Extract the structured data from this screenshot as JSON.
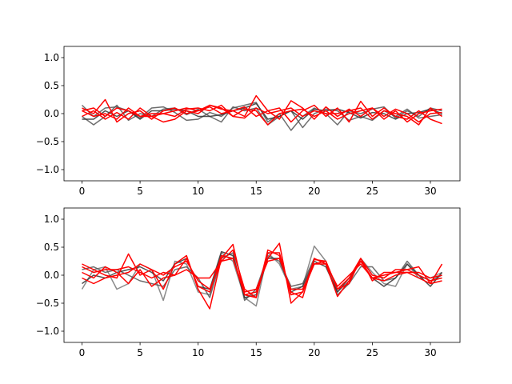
{
  "chart_data": [
    {
      "type": "line",
      "title": "",
      "xlabel": "",
      "ylabel": "",
      "xlim": [
        -1.55,
        32.55
      ],
      "ylim": [
        -1.2,
        1.2
      ],
      "xticks": [
        0,
        5,
        10,
        15,
        20,
        25,
        30
      ],
      "yticks": [
        -1.0,
        -0.5,
        0.0,
        0.5,
        1.0
      ],
      "xtick_labels": [
        "0",
        "5",
        "10",
        "15",
        "20",
        "25",
        "30"
      ],
      "ytick_labels": [
        "−1.0",
        "−0.5",
        "0.0",
        "0.5",
        "1.0"
      ],
      "grid": false,
      "x": [
        0,
        1,
        2,
        3,
        4,
        5,
        6,
        7,
        8,
        9,
        10,
        11,
        12,
        13,
        14,
        15,
        16,
        17,
        18,
        19,
        20,
        21,
        22,
        23,
        24,
        25,
        26,
        27,
        28,
        29,
        30,
        31
      ],
      "series": [
        {
          "color": "#555555",
          "values": [
            0.15,
            -0.05,
            0.1,
            0.12,
            0.05,
            -0.08,
            0.1,
            0.12,
            0.02,
            -0.12,
            -0.1,
            0.02,
            -0.05,
            0.1,
            0.15,
            0.2,
            -0.15,
            0.0,
            -0.3,
            -0.05,
            0.1,
            0.0,
            -0.2,
            0.05,
            0.0,
            0.08,
            0.12,
            -0.08,
            0.05,
            -0.05,
            0.1,
            0.05
          ]
        },
        {
          "color": "#555555",
          "values": [
            -0.05,
            -0.2,
            -0.05,
            0.15,
            -0.12,
            0.0,
            -0.05,
            0.08,
            0.1,
            -0.02,
            0.08,
            -0.05,
            -0.15,
            0.12,
            0.05,
            0.1,
            -0.2,
            -0.05,
            0.05,
            -0.25,
            0.0,
            0.08,
            0.05,
            -0.12,
            -0.05,
            -0.12,
            0.05,
            -0.05,
            0.08,
            -0.08,
            -0.05,
            -0.02
          ]
        },
        {
          "color": "#333333",
          "values": [
            -0.1,
            -0.1,
            0.05,
            -0.05,
            0.05,
            -0.1,
            0.05,
            0.05,
            0.08,
            0.05,
            -0.05,
            -0.05,
            -0.02,
            0.05,
            0.1,
            0.18,
            -0.1,
            -0.05,
            0.05,
            -0.1,
            0.08,
            0.05,
            0.08,
            0.02,
            -0.08,
            0.02,
            0.0,
            -0.1,
            0.0,
            0.02,
            0.08,
            0.0
          ]
        },
        {
          "color": "#ff0000",
          "values": [
            0.1,
            0.0,
            0.25,
            -0.15,
            0.0,
            0.05,
            -0.1,
            0.05,
            0.1,
            0.0,
            0.05,
            0.12,
            0.0,
            0.05,
            -0.05,
            0.32,
            0.05,
            0.1,
            -0.15,
            0.05,
            0.15,
            -0.05,
            0.1,
            -0.15,
            0.22,
            -0.05,
            0.1,
            -0.05,
            -0.1,
            0.05,
            -0.1,
            -0.18
          ]
        },
        {
          "color": "#ff0000",
          "values": [
            -0.05,
            0.05,
            -0.1,
            0.02,
            -0.1,
            0.1,
            -0.05,
            -0.15,
            -0.1,
            0.05,
            0.0,
            0.15,
            0.08,
            0.05,
            0.12,
            -0.05,
            0.05,
            -0.1,
            0.23,
            0.1,
            -0.1,
            0.12,
            -0.05,
            0.08,
            -0.05,
            0.1,
            -0.1,
            0.05,
            -0.15,
            0.0,
            0.05,
            0.08
          ]
        },
        {
          "color": "#ff0000",
          "values": [
            0.05,
            0.1,
            -0.05,
            0.1,
            0.05,
            -0.05,
            0.0,
            0.0,
            0.05,
            0.1,
            0.05,
            0.15,
            0.1,
            -0.05,
            -0.08,
            0.1,
            0.0,
            0.05,
            0.1,
            -0.05,
            0.05,
            0.0,
            0.0,
            0.05,
            0.1,
            -0.1,
            0.05,
            0.0,
            -0.05,
            -0.2,
            0.1,
            -0.05
          ]
        },
        {
          "color": "#ff0000",
          "values": [
            0.05,
            -0.05,
            0.0,
            -0.1,
            0.1,
            -0.05,
            -0.05,
            0.0,
            -0.05,
            0.08,
            0.1,
            0.05,
            0.15,
            -0.05,
            0.08,
            0.05,
            -0.2,
            0.0,
            0.05,
            0.08,
            -0.05,
            0.05,
            -0.1,
            0.0,
            0.05,
            0.1,
            -0.05,
            0.08,
            0.0,
            -0.15,
            0.0,
            0.02
          ]
        }
      ]
    },
    {
      "type": "line",
      "title": "",
      "xlabel": "",
      "ylabel": "",
      "xlim": [
        -1.55,
        32.55
      ],
      "ylim": [
        -1.2,
        1.2
      ],
      "xticks": [
        0,
        5,
        10,
        15,
        20,
        25,
        30
      ],
      "yticks": [
        -1.0,
        -0.5,
        0.0,
        0.5,
        1.0
      ],
      "xtick_labels": [
        "0",
        "5",
        "10",
        "15",
        "20",
        "25",
        "30"
      ],
      "ytick_labels": [
        "−1.0",
        "−0.5",
        "0.0",
        "0.5",
        "1.0"
      ],
      "grid": false,
      "x": [
        0,
        1,
        2,
        3,
        4,
        5,
        6,
        7,
        8,
        9,
        10,
        11,
        12,
        13,
        14,
        15,
        16,
        17,
        18,
        19,
        20,
        21,
        22,
        23,
        24,
        25,
        26,
        27,
        28,
        29,
        30,
        31
      ],
      "series": [
        {
          "color": "#777777",
          "values": [
            -0.25,
            0.1,
            0.15,
            -0.25,
            -0.15,
            0.2,
            0.1,
            -0.45,
            0.25,
            0.2,
            -0.3,
            -0.35,
            0.4,
            0.25,
            -0.4,
            -0.55,
            0.4,
            0.2,
            -0.25,
            -0.2,
            0.52,
            0.25,
            -0.3,
            -0.1,
            0.3,
            0.05,
            -0.15,
            -0.2,
            0.2,
            -0.05,
            -0.05,
            0.05
          ]
        },
        {
          "color": "#555555",
          "values": [
            0.1,
            0.15,
            0.05,
            0.1,
            0.0,
            -0.1,
            -0.15,
            -0.2,
            0.1,
            0.15,
            -0.05,
            -0.4,
            0.3,
            0.4,
            -0.45,
            -0.25,
            0.35,
            0.25,
            -0.2,
            -0.15,
            0.3,
            0.2,
            -0.35,
            -0.15,
            0.15,
            0.15,
            -0.1,
            -0.05,
            0.25,
            0.0,
            -0.1,
            0.0
          ]
        },
        {
          "color": "#333333",
          "values": [
            -0.15,
            0.0,
            -0.05,
            0.05,
            0.1,
            0.15,
            0.05,
            -0.1,
            0.2,
            0.3,
            -0.2,
            -0.25,
            0.42,
            0.35,
            -0.4,
            -0.35,
            0.3,
            0.3,
            -0.3,
            -0.2,
            0.25,
            0.15,
            -0.3,
            -0.05,
            0.25,
            -0.05,
            -0.2,
            -0.05,
            0.2,
            0.0,
            -0.2,
            0.05
          ]
        },
        {
          "color": "#ff0000",
          "values": [
            0.2,
            0.1,
            0.0,
            -0.05,
            0.38,
            0.0,
            0.1,
            -0.25,
            0.2,
            0.35,
            -0.25,
            -0.6,
            0.3,
            0.55,
            -0.35,
            -0.3,
            0.3,
            0.57,
            -0.5,
            -0.3,
            0.2,
            0.25,
            -0.25,
            -0.15,
            0.3,
            -0.1,
            0.05,
            0.05,
            0.1,
            0.15,
            -0.15,
            0.2
          ]
        },
        {
          "color": "#ff0000",
          "values": [
            0.05,
            -0.05,
            0.15,
            0.05,
            -0.15,
            0.1,
            -0.2,
            -0.05,
            0.0,
            0.3,
            -0.2,
            -0.3,
            0.35,
            0.3,
            -0.35,
            -0.4,
            0.45,
            0.35,
            -0.3,
            -0.4,
            0.3,
            0.2,
            -0.38,
            -0.1,
            0.25,
            -0.05,
            -0.1,
            0.0,
            0.05,
            -0.05,
            -0.15,
            -0.1
          ]
        },
        {
          "color": "#ff0000",
          "values": [
            -0.05,
            -0.15,
            -0.05,
            0.0,
            0.05,
            0.2,
            0.1,
            0.0,
            0.15,
            0.25,
            -0.1,
            -0.25,
            0.25,
            0.45,
            -0.25,
            -0.4,
            0.4,
            0.4,
            -0.35,
            -0.3,
            0.28,
            0.25,
            -0.25,
            -0.05,
            0.3,
            0.0,
            -0.05,
            0.1,
            0.1,
            0.0,
            -0.1,
            -0.05
          ]
        },
        {
          "color": "#ff0000",
          "values": [
            0.15,
            0.05,
            0.1,
            0.1,
            0.15,
            0.05,
            -0.05,
            0.05,
            0.0,
            0.1,
            -0.05,
            -0.05,
            0.25,
            0.3,
            -0.3,
            -0.25,
            0.25,
            0.3,
            -0.25,
            -0.25,
            0.2,
            0.2,
            -0.2,
            0.0,
            0.2,
            -0.05,
            0.0,
            0.05,
            0.05,
            0.05,
            -0.05,
            0.0
          ]
        }
      ]
    }
  ]
}
